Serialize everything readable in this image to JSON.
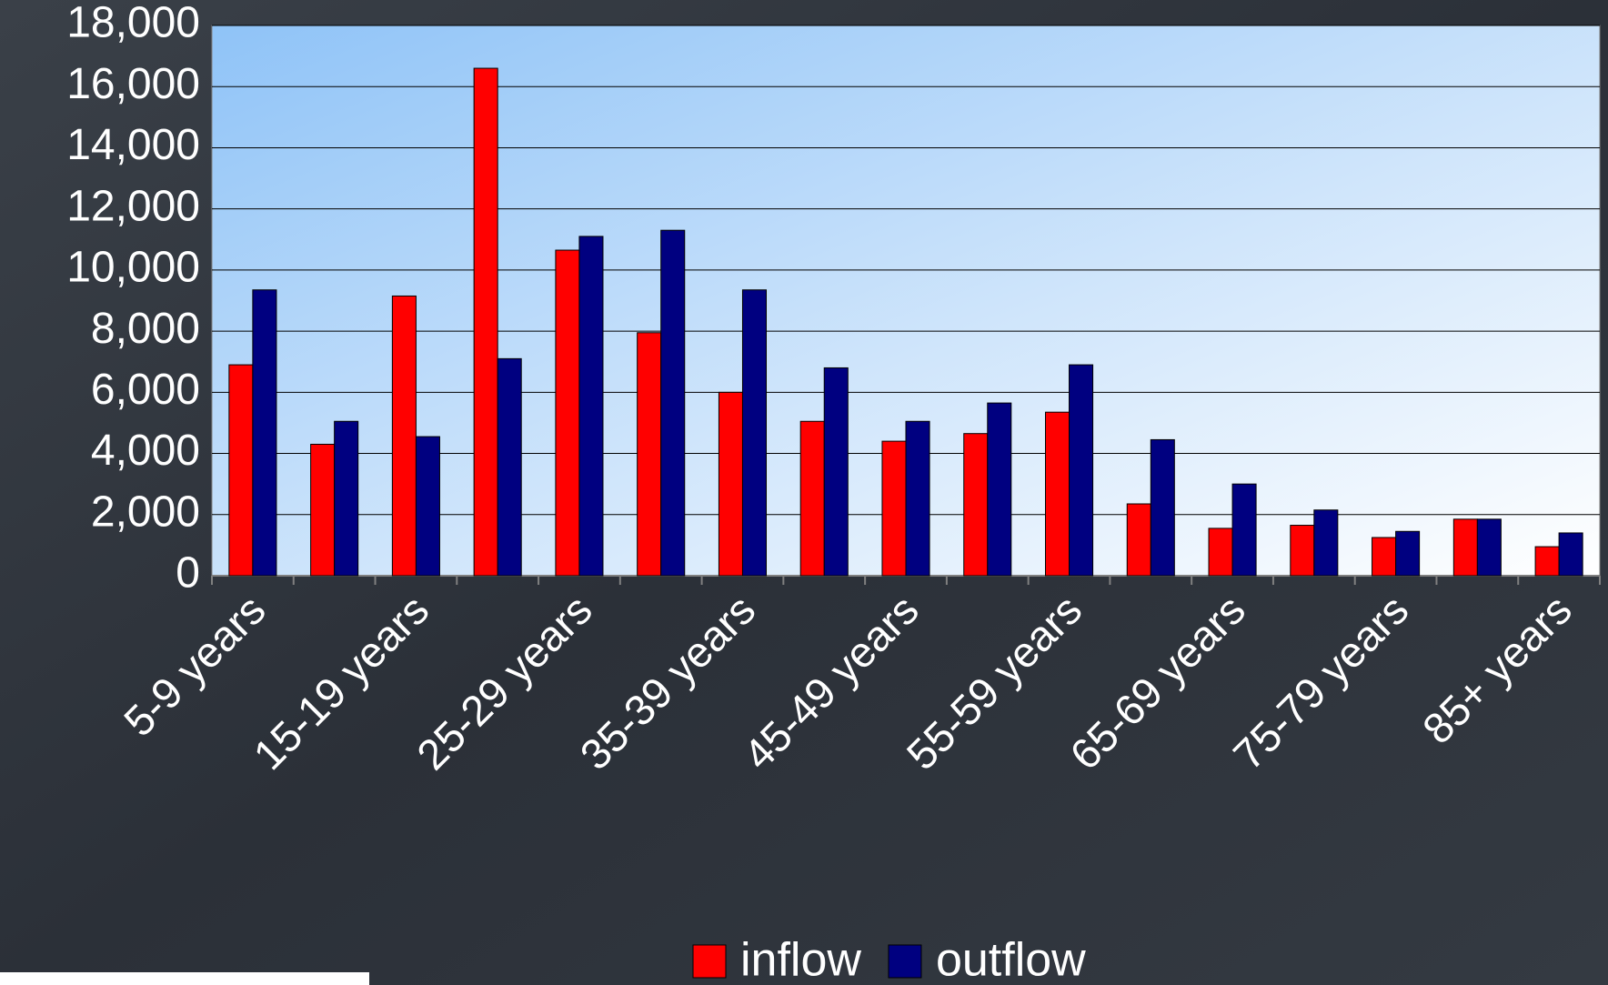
{
  "chart_data": {
    "type": "bar",
    "categories": [
      "5-9 years",
      null,
      "15-19 years",
      null,
      "25-29 years",
      null,
      "35-39 years",
      null,
      "45-49 years",
      null,
      "55-59 years",
      null,
      "65-69 years",
      null,
      "75-79 years",
      null,
      "85+ years"
    ],
    "series": [
      {
        "name": "inflow",
        "color": "#ff0000",
        "values": [
          6900,
          4300,
          9150,
          16600,
          10650,
          7950,
          6000,
          5050,
          4400,
          4650,
          5350,
          2350,
          1550,
          1650,
          1250,
          1850,
          950
        ]
      },
      {
        "name": "outflow",
        "color": "#000080",
        "values": [
          9350,
          5050,
          4550,
          7100,
          11100,
          11300,
          9350,
          6800,
          5050,
          5650,
          6900,
          4450,
          3000,
          2150,
          1450,
          1850,
          1400
        ]
      }
    ],
    "ylim": [
      0,
      18000
    ],
    "yticks": [
      0,
      {
        "value": 2000,
        "label": "2,000"
      },
      {
        "value": 4000,
        "label": "4,000"
      },
      {
        "value": 6000,
        "label": "6,000"
      },
      {
        "value": 8000,
        "label": "8,000"
      },
      {
        "value": 10000,
        "label": "10,000"
      },
      {
        "value": 12000,
        "label": "12,000"
      },
      {
        "value": 14000,
        "label": "14,000"
      },
      {
        "value": 16000,
        "label": "16,000"
      },
      {
        "value": 18000,
        "label": "18,000"
      }
    ],
    "grid": true,
    "legend": "bottom"
  }
}
